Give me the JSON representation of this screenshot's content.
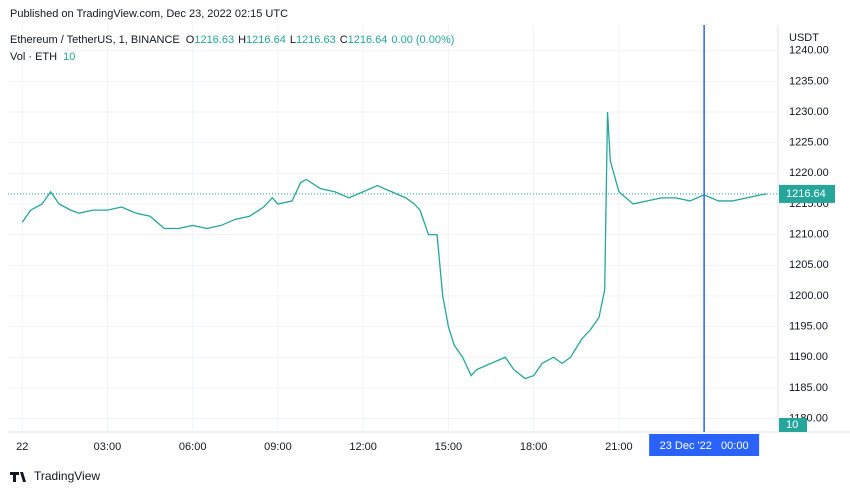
{
  "header": {
    "published": "Published on TradingView.com, Dec 23, 2022 02:15 UTC"
  },
  "footer": {
    "brand": "TradingView"
  },
  "chart_data": {
    "type": "line",
    "symbol": "Ethereum / TetherUS, 1, BINANCE",
    "ohlc": [
      {
        "label": "O",
        "value": 1216.63
      },
      {
        "label": "H",
        "value": 1216.64
      },
      {
        "label": "L",
        "value": 1216.63
      },
      {
        "label": "C",
        "value": 1216.64
      }
    ],
    "change": "0.00 (0.00%)",
    "volume_legend": "Vol · ETH",
    "volume_last": 10,
    "currency": "USDT",
    "last_price": 1216.64,
    "crosshair": {
      "value": 24,
      "label": "23 Dec '22   00:00"
    },
    "x": [
      0,
      0.3,
      0.7,
      1.0,
      1.3,
      1.7,
      2.0,
      2.5,
      3.0,
      3.5,
      4.0,
      4.5,
      5.0,
      5.5,
      6.0,
      6.5,
      7.0,
      7.5,
      8.0,
      8.5,
      8.8,
      9.0,
      9.5,
      9.8,
      10.0,
      10.5,
      11.0,
      11.5,
      12.0,
      12.5,
      13.0,
      13.5,
      13.8,
      14.0,
      14.3,
      14.6,
      14.8,
      15.0,
      15.2,
      15.5,
      15.8,
      16.0,
      16.5,
      17.0,
      17.3,
      17.7,
      18.0,
      18.3,
      18.7,
      19.0,
      19.3,
      19.7,
      20.0,
      20.3,
      20.5,
      20.6,
      20.7,
      21.0,
      21.5,
      22.0,
      22.5,
      23.0,
      23.5,
      24.0,
      24.5,
      25.0,
      25.5,
      26.0,
      26.2
    ],
    "series": [
      {
        "name": "ETHUSDT",
        "color": "#26a69a",
        "values": [
          1212,
          1214,
          1215,
          1217,
          1215,
          1214,
          1213.5,
          1214,
          1214,
          1214.5,
          1213.5,
          1213,
          1211,
          1211,
          1211.5,
          1211,
          1211.5,
          1212.5,
          1213,
          1214.5,
          1216,
          1215,
          1215.5,
          1218.5,
          1219,
          1217.5,
          1217,
          1216,
          1217,
          1218,
          1217,
          1216,
          1215,
          1214,
          1210,
          1210,
          1200,
          1195,
          1192,
          1190,
          1187,
          1188,
          1189,
          1190,
          1188,
          1186.5,
          1187,
          1189,
          1190,
          1189,
          1190,
          1193,
          1194.5,
          1196.5,
          1201,
          1230,
          1222,
          1217,
          1215,
          1215.5,
          1216,
          1216,
          1215.5,
          1216.5,
          1215.5,
          1215.5,
          1216,
          1216.5,
          1216.64
        ]
      }
    ],
    "xlim": [
      -0.5,
      26.6
    ],
    "xticks": [
      {
        "value": 0,
        "label": "22"
      },
      {
        "value": 3,
        "label": "03:00"
      },
      {
        "value": 6,
        "label": "06:00"
      },
      {
        "value": 9,
        "label": "09:00"
      },
      {
        "value": 12,
        "label": "12:00"
      },
      {
        "value": 15,
        "label": "15:00"
      },
      {
        "value": 18,
        "label": "18:00"
      },
      {
        "value": 21,
        "label": "21:00"
      }
    ],
    "ylim": [
      1177.8,
      1244.2
    ],
    "yticks": [
      {
        "value": 1180,
        "label": "1180.00"
      },
      {
        "value": 1185,
        "label": "1185.00"
      },
      {
        "value": 1190,
        "label": "1190.00"
      },
      {
        "value": 1195,
        "label": "1195.00"
      },
      {
        "value": 1200,
        "label": "1200.00"
      },
      {
        "value": 1205,
        "label": "1205.00"
      },
      {
        "value": 1210,
        "label": "1210.00"
      },
      {
        "value": 1215,
        "label": "1215.00"
      },
      {
        "value": 1220,
        "label": "1220.00"
      },
      {
        "value": 1225,
        "label": "1225.00"
      },
      {
        "value": 1230,
        "label": "1230.00"
      },
      {
        "value": 1235,
        "label": "1235.00"
      },
      {
        "value": 1240,
        "label": "1240.00"
      }
    ],
    "grid": true
  }
}
